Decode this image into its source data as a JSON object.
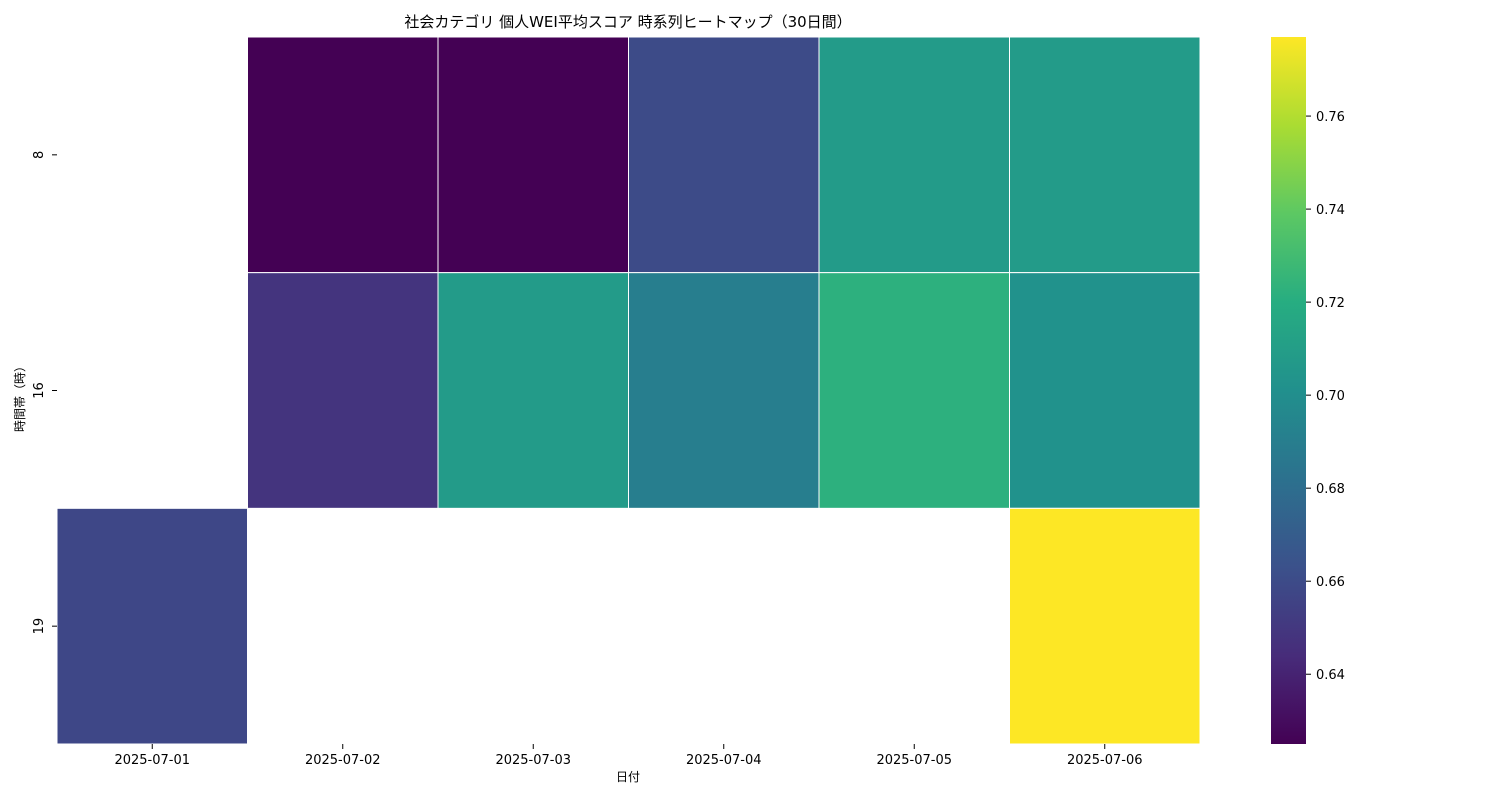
{
  "chart_data": {
    "type": "heatmap",
    "title": "社会カテゴリ 個人WEI平均スコア 時系列ヒートマップ（30日間）",
    "xlabel": "日付",
    "ylabel": "時間帯（時）",
    "x": [
      "2025-07-01",
      "2025-07-02",
      "2025-07-03",
      "2025-07-04",
      "2025-07-05",
      "2025-07-06"
    ],
    "y": [
      "8",
      "16",
      "19"
    ],
    "values": [
      [
        null,
        0.625,
        0.625,
        0.66,
        0.708,
        0.708
      ],
      [
        null,
        0.648,
        0.708,
        0.69,
        0.722,
        0.702
      ],
      [
        0.658,
        null,
        null,
        null,
        null,
        0.777
      ]
    ],
    "colorbar": {
      "colormap": "viridis",
      "vmin": 0.625,
      "vmax": 0.777,
      "ticks": [
        0.64,
        0.66,
        0.68,
        0.7,
        0.72,
        0.74,
        0.76
      ],
      "tick_labels": [
        "0.64",
        "0.66",
        "0.68",
        "0.70",
        "0.72",
        "0.74",
        "0.76"
      ]
    },
    "grid": false,
    "missing_color": "#ffffff",
    "cell_border_color": "#ffffff"
  }
}
